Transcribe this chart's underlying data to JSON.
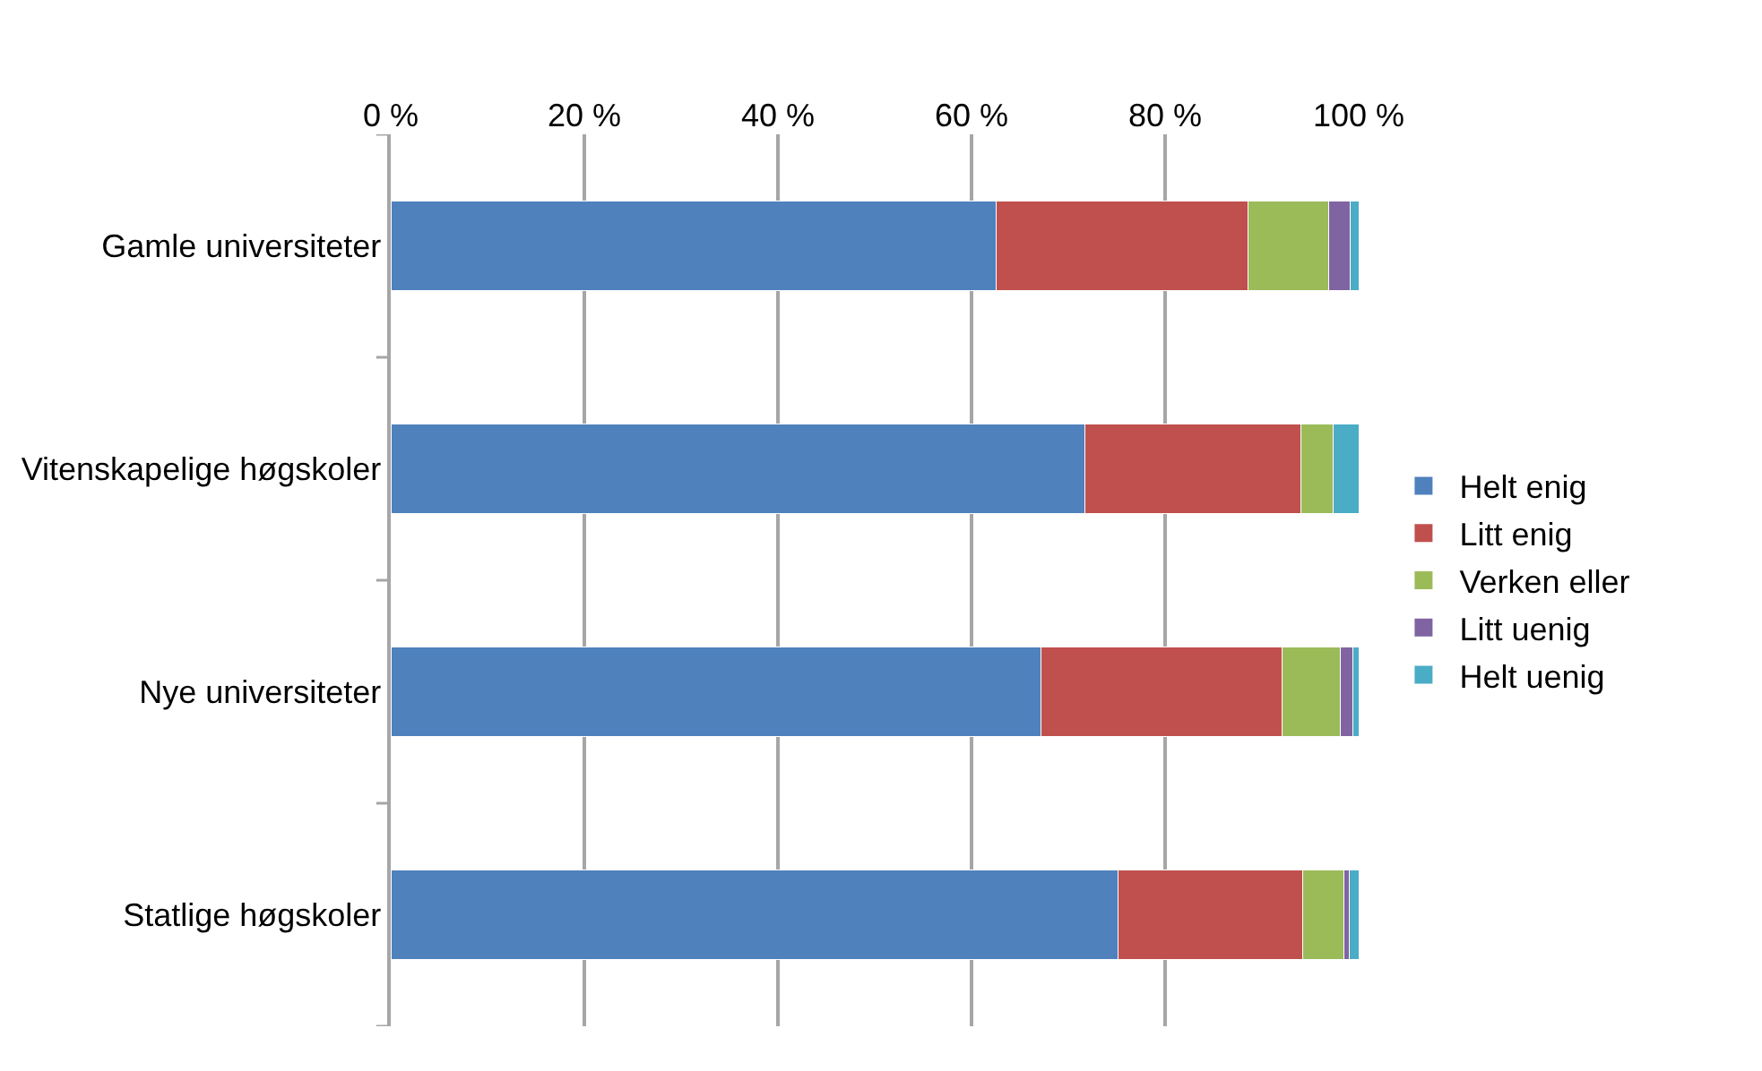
{
  "chart_data": {
    "type": "bar",
    "orientation": "horizontal",
    "stacked": true,
    "categories": [
      "Gamle universiteter",
      "Vitenskapelige høgskoler",
      "Nye universiteter",
      "Statlige høgskoler"
    ],
    "series": [
      {
        "name": "Helt enig",
        "color": "#4f81bd",
        "values": [
          62.5,
          71.7,
          67.2,
          75.1
        ]
      },
      {
        "name": "Litt enig",
        "color": "#c0504d",
        "values": [
          26.1,
          22.3,
          24.9,
          19.1
        ]
      },
      {
        "name": "Verken eller",
        "color": "#9bbb59",
        "values": [
          8.3,
          3.4,
          6.0,
          4.3
        ]
      },
      {
        "name": "Litt uenig",
        "color": "#8064a2",
        "values": [
          2.2,
          0,
          1.3,
          0.5
        ]
      },
      {
        "name": "Helt uenig",
        "color": "#4bacc6",
        "values": [
          0.9,
          2.6,
          0.6,
          1.0
        ]
      }
    ],
    "xlim": [
      0,
      100
    ],
    "xticks": [
      {
        "value": 0,
        "label": "0 %"
      },
      {
        "value": 20,
        "label": "20 %"
      },
      {
        "value": 40,
        "label": "40 %"
      },
      {
        "value": 60,
        "label": "60 %"
      },
      {
        "value": 80,
        "label": "80 %"
      },
      {
        "value": 100,
        "label": "100 %"
      }
    ],
    "grid": "x",
    "legend": "right"
  }
}
